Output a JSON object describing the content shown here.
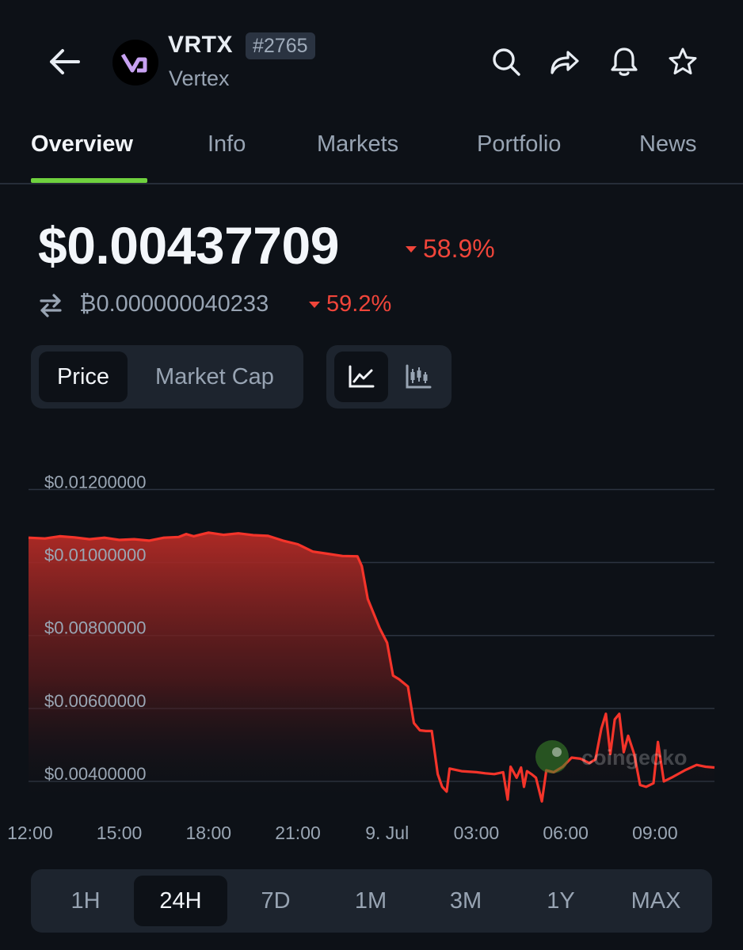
{
  "header": {
    "ticker": "VRTX",
    "rank": "#2765",
    "name": "Vertex",
    "icons": [
      "back-arrow-icon",
      "search-icon",
      "share-icon",
      "bell-icon",
      "star-icon"
    ]
  },
  "tabs": [
    {
      "label": "Overview",
      "active": true
    },
    {
      "label": "Info",
      "active": false
    },
    {
      "label": "Markets",
      "active": false
    },
    {
      "label": "Portfolio",
      "active": false
    },
    {
      "label": "News",
      "active": false
    }
  ],
  "price": {
    "usd": "$0.00437709",
    "usd_change": "58.9%",
    "btc": "₿0.000000040233",
    "btc_change": "59.2%",
    "direction": "down"
  },
  "toggles": {
    "metric": [
      "Price",
      "Market Cap"
    ],
    "active_metric": "Price",
    "chart_types": [
      "line-chart-icon",
      "candlestick-icon"
    ],
    "active_chart_type": "line-chart-icon"
  },
  "watermark": "coingecko",
  "colors": {
    "accent": "#6fd13e",
    "negative": "#f0453a",
    "background": "#0d1117"
  },
  "chart_data": {
    "type": "area",
    "title": "",
    "ylim": [
      0.0035,
      0.0124
    ],
    "y_ticks": [
      {
        "v": 0.012,
        "label": "$0.01200000"
      },
      {
        "v": 0.01,
        "label": "$0.01000000"
      },
      {
        "v": 0.008,
        "label": "$0.00800000"
      },
      {
        "v": 0.006,
        "label": "$0.00600000"
      },
      {
        "v": 0.004,
        "label": "$0.00400000"
      }
    ],
    "x_ticks": [
      {
        "h": 12,
        "label": "12:00"
      },
      {
        "h": 15,
        "label": "15:00"
      },
      {
        "h": 18,
        "label": "18:00"
      },
      {
        "h": 21,
        "label": "21:00"
      },
      {
        "h": 24,
        "label": "9. Jul"
      },
      {
        "h": 27,
        "label": "03:00"
      },
      {
        "h": 30,
        "label": "06:00"
      },
      {
        "h": 33,
        "label": "09:00"
      }
    ],
    "xlim": [
      11.95,
      35.0
    ],
    "grid": true,
    "series": [
      {
        "points": [
          [
            11.95,
            0.01068
          ],
          [
            12.5,
            0.01066
          ],
          [
            13.0,
            0.01072
          ],
          [
            13.5,
            0.01069
          ],
          [
            14.0,
            0.01064
          ],
          [
            14.5,
            0.01068
          ],
          [
            15.0,
            0.01062
          ],
          [
            15.5,
            0.01064
          ],
          [
            16.0,
            0.0106
          ],
          [
            16.5,
            0.01068
          ],
          [
            17.0,
            0.0107
          ],
          [
            17.25,
            0.01078
          ],
          [
            17.5,
            0.01072
          ],
          [
            18.0,
            0.01082
          ],
          [
            18.5,
            0.01076
          ],
          [
            19.0,
            0.0108
          ],
          [
            19.5,
            0.01075
          ],
          [
            20.0,
            0.01073
          ],
          [
            20.5,
            0.0106
          ],
          [
            21.0,
            0.0105
          ],
          [
            21.5,
            0.0103
          ],
          [
            22.0,
            0.01024
          ],
          [
            22.5,
            0.01018
          ],
          [
            23.0,
            0.01017
          ],
          [
            23.15,
            0.0099
          ],
          [
            23.35,
            0.009
          ],
          [
            23.55,
            0.0086
          ],
          [
            23.75,
            0.0082
          ],
          [
            24.0,
            0.0078
          ],
          [
            24.2,
            0.0069
          ],
          [
            24.4,
            0.0068
          ],
          [
            24.7,
            0.0066
          ],
          [
            24.9,
            0.0056
          ],
          [
            25.1,
            0.0054
          ],
          [
            25.3,
            0.00538
          ],
          [
            25.5,
            0.00538
          ],
          [
            25.7,
            0.0042
          ],
          [
            25.85,
            0.00385
          ],
          [
            26.0,
            0.00372
          ],
          [
            26.1,
            0.00435
          ],
          [
            26.5,
            0.00428
          ],
          [
            27.0,
            0.00425
          ],
          [
            27.3,
            0.00422
          ],
          [
            27.6,
            0.0042
          ],
          [
            27.9,
            0.00425
          ],
          [
            28.05,
            0.0035
          ],
          [
            28.15,
            0.0044
          ],
          [
            28.35,
            0.0041
          ],
          [
            28.5,
            0.00438
          ],
          [
            28.6,
            0.00385
          ],
          [
            28.7,
            0.00428
          ],
          [
            28.85,
            0.0042
          ],
          [
            29.0,
            0.0041
          ],
          [
            29.2,
            0.00345
          ],
          [
            29.35,
            0.0043
          ],
          [
            29.6,
            0.00425
          ],
          [
            29.9,
            0.0044
          ],
          [
            30.2,
            0.00465
          ],
          [
            30.5,
            0.00462
          ],
          [
            30.8,
            0.0045
          ],
          [
            31.0,
            0.0046
          ],
          [
            31.2,
            0.00545
          ],
          [
            31.35,
            0.00585
          ],
          [
            31.5,
            0.00475
          ],
          [
            31.65,
            0.0057
          ],
          [
            31.8,
            0.00585
          ],
          [
            31.95,
            0.0048
          ],
          [
            32.1,
            0.00525
          ],
          [
            32.3,
            0.00475
          ],
          [
            32.5,
            0.0039
          ],
          [
            32.7,
            0.00385
          ],
          [
            32.95,
            0.00395
          ],
          [
            33.1,
            0.00508
          ],
          [
            33.3,
            0.004
          ],
          [
            33.6,
            0.00412
          ],
          [
            34.0,
            0.0043
          ],
          [
            34.4,
            0.00445
          ],
          [
            34.7,
            0.0044
          ],
          [
            35.0,
            0.00438
          ]
        ]
      }
    ]
  },
  "ranges": [
    {
      "label": "1H",
      "active": false
    },
    {
      "label": "24H",
      "active": true
    },
    {
      "label": "7D",
      "active": false
    },
    {
      "label": "1M",
      "active": false
    },
    {
      "label": "3M",
      "active": false
    },
    {
      "label": "1Y",
      "active": false
    },
    {
      "label": "MAX",
      "active": false
    }
  ]
}
